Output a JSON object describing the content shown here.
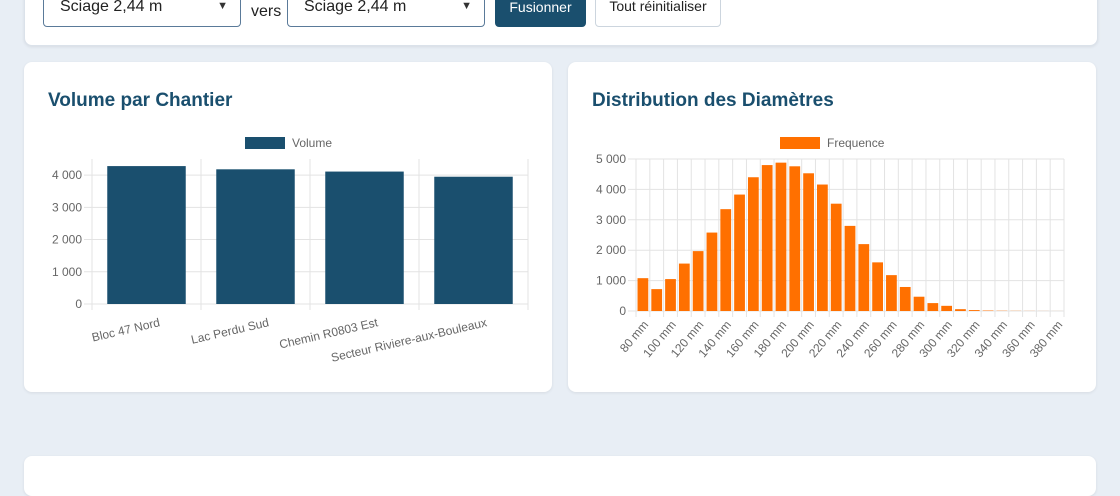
{
  "toolbar": {
    "from_select": "Sciage 2,44 m",
    "vers_label": "vers",
    "to_select": "Sciage 2,44 m",
    "merge_button": "Fusionner",
    "reset_button": "Tout réinitialiser"
  },
  "chart_data": [
    {
      "type": "bar",
      "title": "Volume par Chantier",
      "categories": [
        "Bloc 47 Nord",
        "Lac Perdu Sud",
        "Chemin R0803 Est",
        "Secteur Riviere-aux-Bouleaux"
      ],
      "series": [
        {
          "name": "Volume",
          "values": [
            4280,
            4180,
            4110,
            3950
          ]
        }
      ],
      "ylim": [
        0,
        4500
      ],
      "yticks": [
        0,
        1000,
        2000,
        3000,
        4000
      ],
      "ytick_labels": [
        "0",
        "1 000",
        "2 000",
        "3 000",
        "4 000"
      ],
      "color": "#1a4f6e",
      "legend": "top-center",
      "grid": true
    },
    {
      "type": "bar",
      "title": "Distribution des Diamètres",
      "categories": [
        "80 mm",
        "90 mm",
        "100 mm",
        "110 mm",
        "120 mm",
        "130 mm",
        "140 mm",
        "150 mm",
        "160 mm",
        "170 mm",
        "180 mm",
        "190 mm",
        "200 mm",
        "210 mm",
        "220 mm",
        "230 mm",
        "240 mm",
        "250 mm",
        "260 mm",
        "270 mm",
        "280 mm",
        "290 mm",
        "300 mm",
        "310 mm",
        "320 mm",
        "330 mm",
        "340 mm",
        "350 mm",
        "360 mm",
        "370 mm",
        "380 mm"
      ],
      "visible_tick_labels": [
        "80 mm",
        "100 mm",
        "120 mm",
        "140 mm",
        "160 mm",
        "180 mm",
        "200 mm",
        "220 mm",
        "240 mm",
        "260 mm",
        "280 mm",
        "300 mm",
        "320 mm",
        "340 mm",
        "360 mm",
        "380 mm"
      ],
      "series": [
        {
          "name": "Frequence",
          "values": [
            1080,
            720,
            1050,
            1560,
            1970,
            2580,
            3350,
            3830,
            4400,
            4800,
            4880,
            4760,
            4530,
            4160,
            3530,
            2800,
            2200,
            1600,
            1180,
            790,
            470,
            260,
            170,
            60,
            30,
            15,
            8,
            5,
            3,
            2,
            1
          ]
        }
      ],
      "ylim": [
        0,
        5000
      ],
      "yticks": [
        0,
        1000,
        2000,
        3000,
        4000,
        5000
      ],
      "ytick_labels": [
        "0",
        "1 000",
        "2 000",
        "3 000",
        "4 000",
        "5 000"
      ],
      "color": "#ff7000",
      "legend": "top-center",
      "grid": true
    }
  ]
}
